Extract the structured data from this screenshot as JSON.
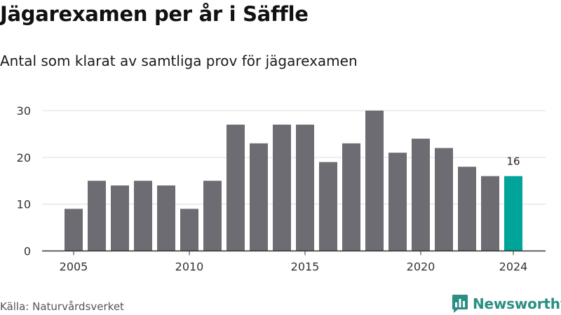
{
  "chart_data": {
    "type": "bar",
    "title": "Jägarexamen per år i Säffle",
    "subtitle": "Antal som klarat av samtliga prov för jägarexamen",
    "x": [
      2005,
      2006,
      2007,
      2008,
      2009,
      2010,
      2011,
      2012,
      2013,
      2014,
      2015,
      2016,
      2017,
      2018,
      2019,
      2020,
      2021,
      2022,
      2023,
      2024
    ],
    "values": [
      9,
      15,
      14,
      15,
      14,
      9,
      15,
      27,
      23,
      27,
      27,
      19,
      23,
      30,
      21,
      24,
      22,
      18,
      16,
      16
    ],
    "highlight_x": 2024,
    "data_labels": [
      {
        "x": 2024,
        "label": "16"
      }
    ],
    "xticks": [
      2005,
      2010,
      2015,
      2020,
      2024
    ],
    "yticks": [
      0,
      10,
      20,
      30
    ],
    "ylim": [
      0,
      30
    ],
    "grid": true,
    "xlabel": "",
    "ylabel": "",
    "colors": {
      "bar": "#6d6c72",
      "highlight": "#00a499",
      "grid": "#dcdcdc",
      "axis": "#333333",
      "tick_text": "#333333"
    }
  },
  "source": "Källa: Naturvårdsverket",
  "brand": {
    "name": "Newsworthy",
    "icon": "newsworthy-logo-icon",
    "color": "#2a8f82"
  }
}
